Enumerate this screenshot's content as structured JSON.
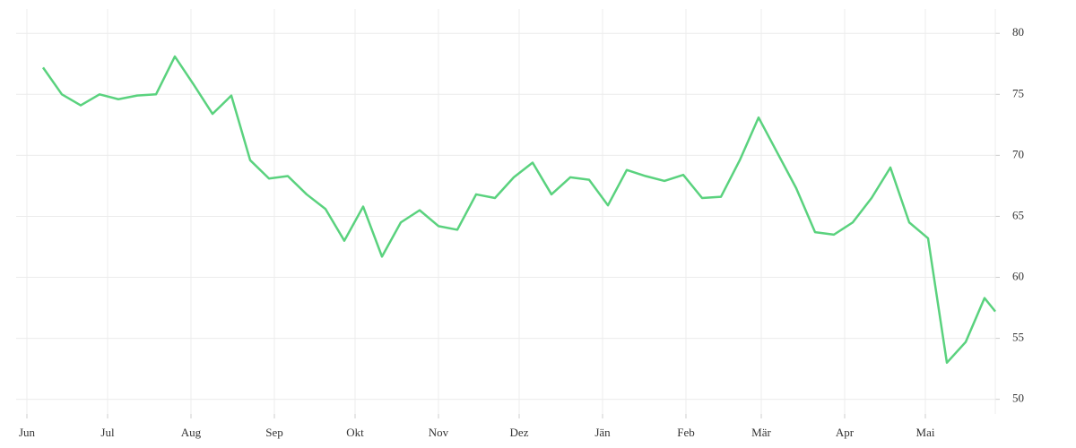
{
  "chart_data": {
    "type": "line",
    "x": [
      6,
      13,
      20,
      27,
      34,
      41,
      48,
      55,
      62,
      69,
      76,
      83,
      90,
      97,
      104,
      111,
      118,
      125,
      132,
      139,
      146,
      153,
      160,
      167,
      174,
      181,
      188,
      195,
      202,
      209,
      216,
      223,
      230,
      237,
      244,
      251,
      258,
      265,
      272,
      279,
      286,
      293,
      300,
      307,
      314,
      321,
      328,
      335,
      342,
      349,
      356,
      360
    ],
    "series": [
      {
        "color": "#5ad27e",
        "values": [
          77.2,
          75.0,
          74.1,
          75.0,
          74.6,
          74.9,
          75.0,
          78.1,
          75.8,
          73.4,
          74.9,
          69.6,
          68.1,
          68.3,
          66.8,
          65.6,
          63.0,
          65.8,
          61.7,
          64.5,
          65.5,
          64.2,
          63.9,
          66.8,
          66.5,
          68.2,
          69.4,
          66.8,
          68.2,
          68.0,
          65.9,
          68.8,
          68.3,
          67.9,
          68.4,
          66.5,
          66.6,
          69.6,
          73.1,
          70.2,
          67.3,
          63.7,
          63.5,
          64.5,
          66.5,
          69.0,
          64.5,
          63.2,
          53.0,
          54.7,
          58.3,
          57.2
        ]
      }
    ],
    "xlim": [
      -4,
      360
    ],
    "xticks": [
      {
        "value": 0,
        "label": "Jun"
      },
      {
        "value": 30,
        "label": "Jul"
      },
      {
        "value": 61,
        "label": "Aug"
      },
      {
        "value": 92,
        "label": "Sep"
      },
      {
        "value": 122,
        "label": "Okt"
      },
      {
        "value": 153,
        "label": "Nov"
      },
      {
        "value": 183,
        "label": "Dez"
      },
      {
        "value": 214,
        "label": "Jän"
      },
      {
        "value": 245,
        "label": "Feb"
      },
      {
        "value": 273,
        "label": "Mär"
      },
      {
        "value": 304,
        "label": "Apr"
      },
      {
        "value": 334,
        "label": "Mai"
      }
    ],
    "ylim": [
      48.8,
      82
    ],
    "yticks": [
      50,
      55,
      60,
      65,
      70,
      75,
      80
    ],
    "grid": true
  }
}
